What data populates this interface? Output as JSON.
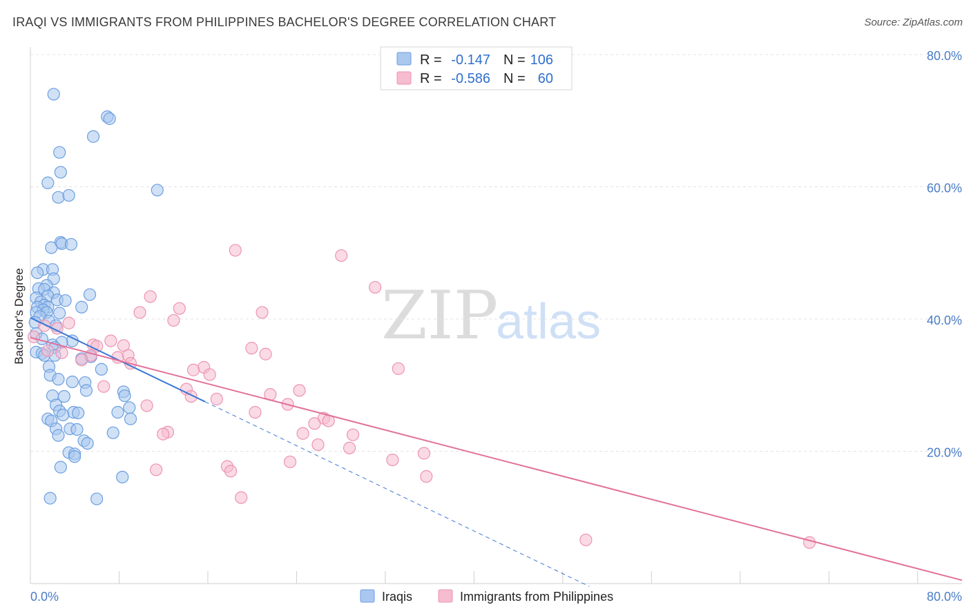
{
  "header": {
    "title": "IRAQI VS IMMIGRANTS FROM PHILIPPINES BACHELOR'S DEGREE CORRELATION CHART",
    "source": "Source: ZipAtlas.com"
  },
  "legend": {
    "r_label": "R =",
    "n_label": "N =",
    "series": [
      {
        "r": "-0.147",
        "n": "106"
      },
      {
        "r": "-0.586",
        "n": "60"
      }
    ]
  },
  "watermark": {
    "part1": "ZIP",
    "part2": "atlas"
  },
  "colors": {
    "iraqi_fill": "#aac8ef",
    "iraqi_stroke": "#6b9ee0",
    "iraqi_line": "#3a78d4",
    "phil_fill": "#f6bccf",
    "phil_stroke": "#ec93b1",
    "phil_line": "#e2709a",
    "grid": "#e3e3e3",
    "tick_label": "#4a7cc7"
  },
  "chart_data": {
    "type": "scatter",
    "title": "IRAQI VS IMMIGRANTS FROM PHILIPPINES BACHELOR'S DEGREE CORRELATION CHART",
    "xlabel": "",
    "ylabel": "Bachelor's Degree",
    "xlim": [
      0,
      80
    ],
    "ylim": [
      0,
      80
    ],
    "x_tick_labels": [
      "0.0%",
      "80.0%"
    ],
    "y_ticks": [
      20,
      40,
      60,
      80
    ],
    "y_tick_labels": [
      "20.0%",
      "40.0%",
      "60.0%",
      "80.0%"
    ],
    "legend_labels": [
      "Iraqis",
      "Immigrants from Philippines"
    ],
    "series": [
      {
        "name": "Iraqis",
        "r": -0.147,
        "n": 106,
        "trend": {
          "x0": 0,
          "y0": 40.2,
          "x1": 15.0,
          "y1": 27.5,
          "dash_x1": 48.0
        },
        "points": [
          [
            2.0,
            74.0
          ],
          [
            6.6,
            70.6
          ],
          [
            6.8,
            70.3
          ],
          [
            5.4,
            67.6
          ],
          [
            2.5,
            65.2
          ],
          [
            2.6,
            62.2
          ],
          [
            1.5,
            60.6
          ],
          [
            10.9,
            59.5
          ],
          [
            2.4,
            58.4
          ],
          [
            3.3,
            58.7
          ],
          [
            2.6,
            51.6
          ],
          [
            2.7,
            51.4
          ],
          [
            3.5,
            51.3
          ],
          [
            1.8,
            50.8
          ],
          [
            1.1,
            47.5
          ],
          [
            1.9,
            47.5
          ],
          [
            0.6,
            47.0
          ],
          [
            2.0,
            46.1
          ],
          [
            1.4,
            45.1
          ],
          [
            0.7,
            44.6
          ],
          [
            1.2,
            44.5
          ],
          [
            5.1,
            43.7
          ],
          [
            2.0,
            44.0
          ],
          [
            1.5,
            43.5
          ],
          [
            0.5,
            43.2
          ],
          [
            2.3,
            42.9
          ],
          [
            3.0,
            42.8
          ],
          [
            0.9,
            42.6
          ],
          [
            1.2,
            42.1
          ],
          [
            1.5,
            41.8
          ],
          [
            0.6,
            41.8
          ],
          [
            4.4,
            41.8
          ],
          [
            1.1,
            41.4
          ],
          [
            0.5,
            41.0
          ],
          [
            1.4,
            41.0
          ],
          [
            2.5,
            40.9
          ],
          [
            0.8,
            40.4
          ],
          [
            1.6,
            39.7
          ],
          [
            0.4,
            39.5
          ],
          [
            2.2,
            39.0
          ],
          [
            0.5,
            37.8
          ],
          [
            1.0,
            37.0
          ],
          [
            1.9,
            36.1
          ],
          [
            3.6,
            36.7
          ],
          [
            2.7,
            36.5
          ],
          [
            2.1,
            35.7
          ],
          [
            0.5,
            35.0
          ],
          [
            1.0,
            34.8
          ],
          [
            1.2,
            34.5
          ],
          [
            2.1,
            34.5
          ],
          [
            4.4,
            34.0
          ],
          [
            5.2,
            34.3
          ],
          [
            1.6,
            32.8
          ],
          [
            1.7,
            31.5
          ],
          [
            6.1,
            32.4
          ],
          [
            2.4,
            30.9
          ],
          [
            3.6,
            30.5
          ],
          [
            4.7,
            30.4
          ],
          [
            4.8,
            29.2
          ],
          [
            8.0,
            29.0
          ],
          [
            8.1,
            28.4
          ],
          [
            1.9,
            28.4
          ],
          [
            2.9,
            28.3
          ],
          [
            2.2,
            27.0
          ],
          [
            8.5,
            26.6
          ],
          [
            2.5,
            26.1
          ],
          [
            7.5,
            25.9
          ],
          [
            3.7,
            25.9
          ],
          [
            4.1,
            25.8
          ],
          [
            2.8,
            25.5
          ],
          [
            1.5,
            24.9
          ],
          [
            1.8,
            24.6
          ],
          [
            8.6,
            24.9
          ],
          [
            2.2,
            23.4
          ],
          [
            3.4,
            23.4
          ],
          [
            4.0,
            23.3
          ],
          [
            7.1,
            22.8
          ],
          [
            2.4,
            22.4
          ],
          [
            4.6,
            21.6
          ],
          [
            4.9,
            21.2
          ],
          [
            3.3,
            19.8
          ],
          [
            3.8,
            19.6
          ],
          [
            3.8,
            19.2
          ],
          [
            2.6,
            17.6
          ],
          [
            7.9,
            16.1
          ],
          [
            1.7,
            12.9
          ],
          [
            5.7,
            12.8
          ]
        ]
      },
      {
        "name": "Immigrants from Philippines",
        "r": -0.586,
        "n": 60,
        "trend": {
          "x0": 0,
          "y0": 37.2,
          "x1": 80,
          "y1": 0.5
        },
        "points": [
          [
            17.6,
            50.4
          ],
          [
            26.7,
            49.6
          ],
          [
            29.6,
            44.8
          ],
          [
            10.3,
            43.4
          ],
          [
            12.8,
            41.6
          ],
          [
            9.4,
            41.0
          ],
          [
            19.9,
            41.0
          ],
          [
            12.3,
            39.8
          ],
          [
            3.3,
            39.4
          ],
          [
            1.2,
            39.0
          ],
          [
            2.3,
            38.6
          ],
          [
            0.3,
            37.3
          ],
          [
            6.9,
            36.7
          ],
          [
            8.0,
            36.0
          ],
          [
            5.4,
            36.1
          ],
          [
            5.7,
            35.9
          ],
          [
            1.5,
            35.2
          ],
          [
            19.0,
            35.6
          ],
          [
            2.7,
            34.9
          ],
          [
            20.2,
            34.7
          ],
          [
            8.4,
            34.5
          ],
          [
            5.2,
            34.5
          ],
          [
            7.5,
            34.2
          ],
          [
            4.4,
            33.8
          ],
          [
            8.6,
            33.3
          ],
          [
            14.9,
            32.7
          ],
          [
            14.0,
            32.3
          ],
          [
            15.4,
            31.6
          ],
          [
            31.6,
            32.5
          ],
          [
            6.3,
            29.8
          ],
          [
            13.4,
            29.4
          ],
          [
            23.1,
            29.2
          ],
          [
            20.6,
            28.6
          ],
          [
            13.8,
            28.3
          ],
          [
            16.0,
            27.9
          ],
          [
            10.0,
            26.9
          ],
          [
            22.1,
            27.1
          ],
          [
            19.3,
            25.9
          ],
          [
            25.2,
            25.0
          ],
          [
            25.6,
            24.6
          ],
          [
            24.4,
            24.2
          ],
          [
            11.8,
            22.9
          ],
          [
            11.4,
            22.6
          ],
          [
            23.4,
            22.7
          ],
          [
            27.7,
            22.5
          ],
          [
            24.7,
            21.0
          ],
          [
            27.4,
            20.5
          ],
          [
            33.8,
            19.7
          ],
          [
            31.1,
            18.7
          ],
          [
            22.3,
            18.4
          ],
          [
            16.9,
            17.7
          ],
          [
            10.8,
            17.2
          ],
          [
            17.2,
            17.0
          ],
          [
            34.0,
            16.2
          ],
          [
            18.1,
            13.0
          ],
          [
            47.7,
            6.6
          ],
          [
            66.9,
            6.2
          ]
        ]
      }
    ]
  }
}
